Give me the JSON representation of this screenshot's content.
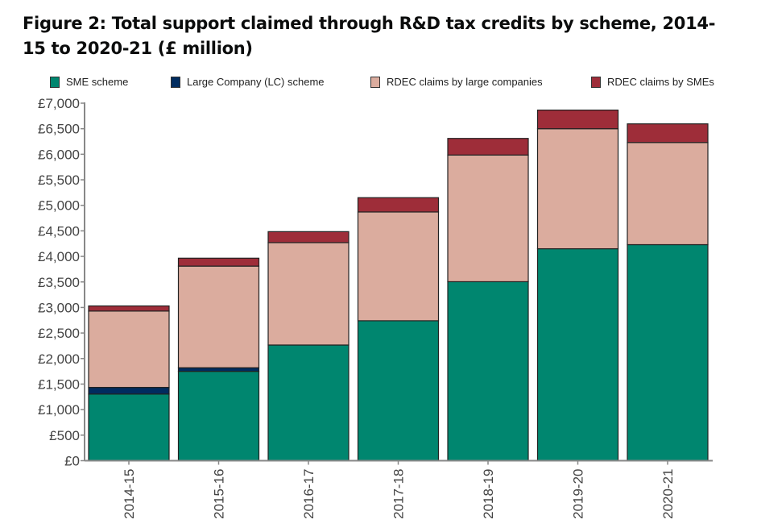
{
  "chart_data": {
    "type": "bar",
    "stacked": true,
    "title": "Figure 2: Total support claimed through R&D tax credits by scheme, 2014-15 to 2020-21 (£ million)",
    "xlabel": "",
    "ylabel": "",
    "ylim": [
      0,
      7000
    ],
    "yticks": [
      0,
      500,
      1000,
      1500,
      2000,
      2500,
      3000,
      3500,
      4000,
      4500,
      5000,
      5500,
      6000,
      6500,
      7000
    ],
    "ytick_labels": [
      "£0",
      "£500",
      "£1,000",
      "£1,500",
      "£2,000",
      "£2,500",
      "£3,000",
      "£3,500",
      "£4,000",
      "£4,500",
      "£5,000",
      "£5,500",
      "£6,000",
      "£6,500",
      "£7,000"
    ],
    "grid": false,
    "legend_position": "top",
    "categories": [
      "2014-15",
      "2015-16",
      "2016-17",
      "2017-18",
      "2018-19",
      "2019-20",
      "2020-21"
    ],
    "series": [
      {
        "name": "SME scheme",
        "color": "#00866f",
        "values": [
          1305,
          1750,
          2265,
          2740,
          3505,
          4150,
          4230
        ]
      },
      {
        "name": "Large Company (LC) scheme",
        "color": "#002c5f",
        "values": [
          130,
          70,
          0,
          0,
          0,
          0,
          0
        ]
      },
      {
        "name": "RDEC claims by large companies",
        "color": "#dbac9e",
        "values": [
          1495,
          1990,
          2005,
          2130,
          2480,
          2350,
          2000
        ]
      },
      {
        "name": "RDEC claims by SMEs",
        "color": "#9e2d39",
        "values": [
          100,
          155,
          215,
          280,
          325,
          365,
          365
        ]
      }
    ]
  }
}
